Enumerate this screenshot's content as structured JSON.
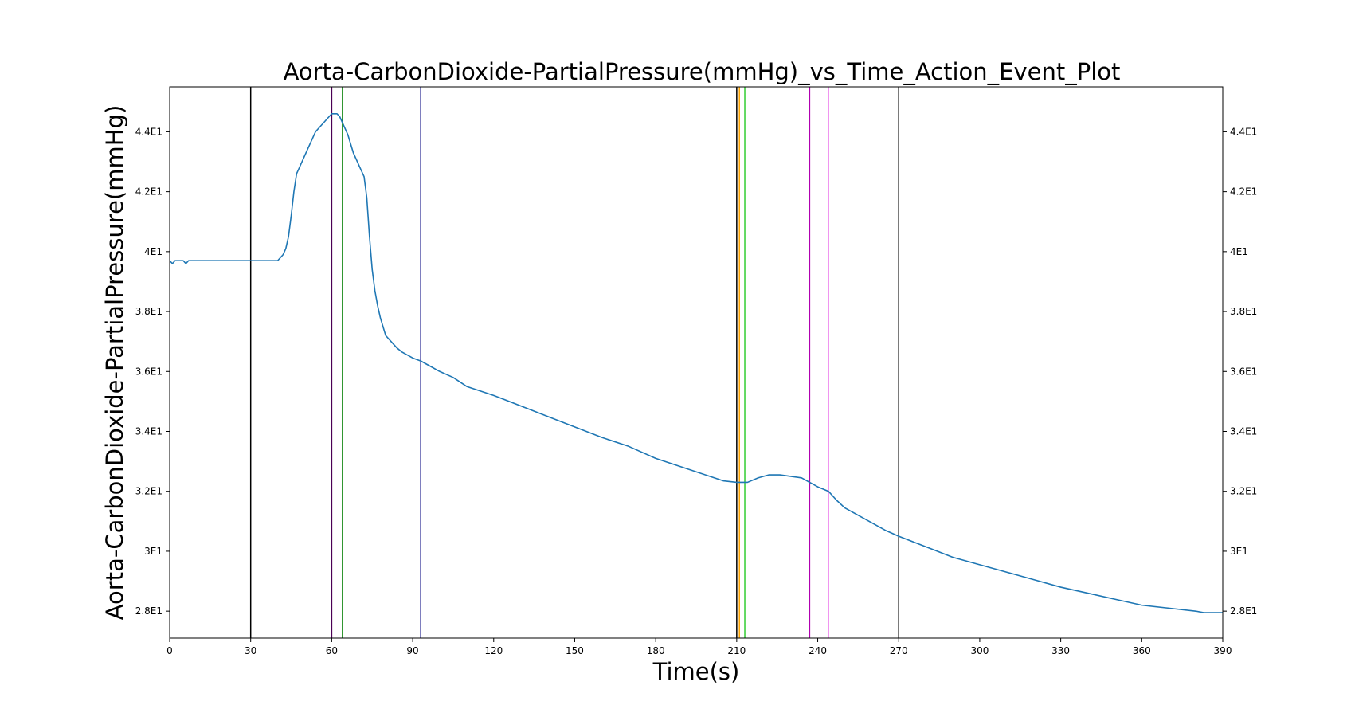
{
  "chart_data": {
    "type": "line",
    "title": "Aorta-CarbonDioxide-PartialPressure(mmHg)_vs_Time_Action_Event_Plot",
    "xlabel": "Time(s)",
    "ylabel": "Aorta-CarbonDioxide-PartialPressure(mmHg)",
    "xlim": [
      0,
      390
    ],
    "ylim": [
      27.1,
      45.5
    ],
    "x_ticks": [
      0,
      30,
      60,
      90,
      120,
      150,
      180,
      210,
      240,
      270,
      300,
      330,
      360,
      390
    ],
    "x_tick_labels": [
      "0",
      "30",
      "60",
      "90",
      "120",
      "150",
      "180",
      "210",
      "240",
      "270",
      "300",
      "330",
      "360",
      "390"
    ],
    "y_ticks": [
      28,
      30,
      32,
      34,
      36,
      38,
      40,
      42,
      44
    ],
    "y_tick_labels": [
      "2.8E1",
      "3E1",
      "3.2E1",
      "3.4E1",
      "3.6E1",
      "3.8E1",
      "4E1",
      "4.2E1",
      "4.4E1"
    ],
    "y_ticks_mirrored_right": true,
    "grid": false,
    "series": [
      {
        "color": "#1f77b4",
        "x": [
          0,
          1,
          2,
          5,
          6,
          7,
          30,
          40,
          41,
          42,
          43,
          44,
          45,
          46,
          47,
          48,
          49,
          50,
          51,
          52,
          53,
          54,
          55,
          56,
          57,
          58,
          59,
          60,
          61,
          62,
          63,
          64,
          65,
          66,
          67,
          68,
          69,
          70,
          71,
          72,
          73,
          74,
          75,
          76,
          77,
          78,
          79,
          80,
          82,
          84,
          86,
          88,
          90,
          93,
          96,
          100,
          105,
          110,
          120,
          130,
          140,
          150,
          160,
          170,
          180,
          190,
          200,
          205,
          210,
          214,
          218,
          222,
          226,
          230,
          234,
          237,
          240,
          244,
          247,
          250,
          255,
          260,
          265,
          270,
          280,
          290,
          300,
          310,
          320,
          330,
          340,
          350,
          360,
          370,
          380,
          383,
          390
        ],
        "y": [
          39.7,
          39.6,
          39.7,
          39.7,
          39.6,
          39.7,
          39.7,
          39.7,
          39.8,
          39.9,
          40.1,
          40.5,
          41.2,
          42.0,
          42.6,
          42.8,
          43.0,
          43.2,
          43.4,
          43.6,
          43.8,
          44.0,
          44.1,
          44.2,
          44.3,
          44.4,
          44.5,
          44.6,
          44.6,
          44.6,
          44.5,
          44.3,
          44.1,
          43.9,
          43.6,
          43.3,
          43.1,
          42.9,
          42.7,
          42.5,
          41.8,
          40.5,
          39.4,
          38.7,
          38.2,
          37.8,
          37.5,
          37.2,
          37.0,
          36.8,
          36.65,
          36.55,
          36.45,
          36.35,
          36.2,
          36.0,
          35.8,
          35.5,
          35.2,
          34.85,
          34.5,
          34.15,
          33.8,
          33.5,
          33.1,
          32.8,
          32.5,
          32.35,
          32.3,
          32.3,
          32.45,
          32.55,
          32.55,
          32.5,
          32.45,
          32.3,
          32.15,
          32.0,
          31.7,
          31.45,
          31.2,
          30.95,
          30.7,
          30.5,
          30.15,
          29.8,
          29.55,
          29.3,
          29.05,
          28.8,
          28.6,
          28.4,
          28.2,
          28.1,
          28.0,
          27.95,
          27.95
        ]
      }
    ],
    "event_lines": [
      {
        "x": 30,
        "color": "#000000"
      },
      {
        "x": 60,
        "color": "#4b0055"
      },
      {
        "x": 64,
        "color": "#007d00"
      },
      {
        "x": 93,
        "color": "#00007d"
      },
      {
        "x": 210,
        "color": "#000000"
      },
      {
        "x": 211,
        "color": "#ffa500"
      },
      {
        "x": 213,
        "color": "#32cd32"
      },
      {
        "x": 237,
        "color": "#b000b0"
      },
      {
        "x": 244,
        "color": "#ee82ee"
      },
      {
        "x": 270,
        "color": "#000000"
      }
    ]
  }
}
